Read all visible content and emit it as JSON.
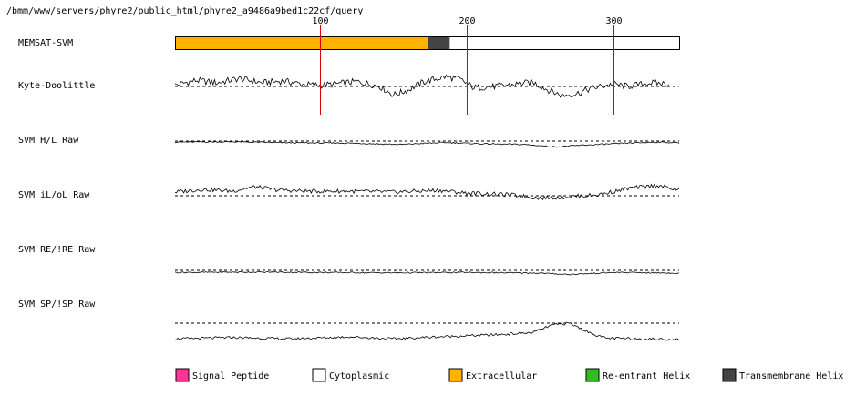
{
  "header": {
    "path": "/bmm/www/servers/phyre2/public_html/phyre2_a9486a9bed1c22cf/query"
  },
  "sequence": {
    "length": 345
  },
  "ticks": [
    {
      "pos": 100,
      "label": "100"
    },
    {
      "pos": 200,
      "label": "200"
    },
    {
      "pos": 300,
      "label": "300"
    }
  ],
  "tracks": [
    {
      "id": "memsat",
      "label": "MEMSAT-SVM"
    },
    {
      "id": "kd",
      "label": "Kyte-Doolittle"
    },
    {
      "id": "svm_hl",
      "label": "SVM H/L Raw"
    },
    {
      "id": "svm_ilol",
      "label": "SVM iL/oL Raw"
    },
    {
      "id": "svm_re",
      "label": "SVM RE/!RE Raw"
    },
    {
      "id": "svm_sp",
      "label": "SVM SP/!SP Raw"
    }
  ],
  "memsat_segments": [
    {
      "start": 1,
      "end": 173,
      "type": "extracellular"
    },
    {
      "start": 174,
      "end": 188,
      "type": "transmembrane"
    },
    {
      "start": 189,
      "end": 345,
      "type": "cytoplasmic"
    }
  ],
  "legend": [
    {
      "type": "signal",
      "label": "Signal Peptide",
      "color": "#ff3399"
    },
    {
      "type": "cytoplasmic",
      "label": "Cytoplasmic",
      "color": "#ffffff"
    },
    {
      "type": "extracellular",
      "label": "Extracellular",
      "color": "#ffb300"
    },
    {
      "type": "reentrant",
      "label": "Re-entrant Helix",
      "color": "#33bb22"
    },
    {
      "type": "transmembrane",
      "label": "Transmembrane Helix",
      "color": "#444444"
    }
  ],
  "chart_data": {
    "type": "line",
    "x_range": [
      1,
      345
    ],
    "series": [
      {
        "id": "kd",
        "threshold": 0,
        "ylim": [
          -4.5,
          4.5
        ],
        "profile": [
          [
            1,
            0.2
          ],
          [
            15,
            1.0
          ],
          [
            30,
            0.6
          ],
          [
            45,
            1.3
          ],
          [
            60,
            0.6
          ],
          [
            75,
            0.9
          ],
          [
            90,
            0.3
          ],
          [
            100,
            0.2
          ],
          [
            110,
            0.4
          ],
          [
            125,
            0.8
          ],
          [
            140,
            0.1
          ],
          [
            150,
            -1.4
          ],
          [
            160,
            -0.6
          ],
          [
            170,
            0.7
          ],
          [
            185,
            1.6
          ],
          [
            195,
            1.2
          ],
          [
            205,
            -0.2
          ],
          [
            220,
            0.0
          ],
          [
            235,
            0.4
          ],
          [
            245,
            0.7
          ],
          [
            255,
            -0.5
          ],
          [
            265,
            -1.5
          ],
          [
            275,
            -1.2
          ],
          [
            285,
            -0.3
          ],
          [
            300,
            0.4
          ],
          [
            310,
            0.0
          ],
          [
            325,
            0.6
          ],
          [
            338,
            0.4
          ]
        ]
      },
      {
        "id": "svm_hl",
        "threshold": 0,
        "ylim": [
          -8,
          8
        ],
        "profile": [
          [
            1,
            -0.3
          ],
          [
            40,
            -0.2
          ],
          [
            80,
            -0.5
          ],
          [
            120,
            -0.6
          ],
          [
            155,
            -1.0
          ],
          [
            185,
            -0.4
          ],
          [
            210,
            -0.8
          ],
          [
            240,
            -1.0
          ],
          [
            260,
            -1.7
          ],
          [
            280,
            -1.2
          ],
          [
            310,
            -0.6
          ],
          [
            330,
            -0.3
          ],
          [
            345,
            -0.5
          ]
        ]
      },
      {
        "id": "svm_ilol",
        "threshold": 0,
        "ylim": [
          -6,
          6
        ],
        "profile": [
          [
            1,
            0.8
          ],
          [
            20,
            1.4
          ],
          [
            40,
            1.0
          ],
          [
            55,
            2.0
          ],
          [
            70,
            1.3
          ],
          [
            90,
            1.0
          ],
          [
            120,
            1.0
          ],
          [
            150,
            0.8
          ],
          [
            180,
            1.2
          ],
          [
            200,
            0.6
          ],
          [
            230,
            0.2
          ],
          [
            250,
            -0.5
          ],
          [
            265,
            -0.3
          ],
          [
            290,
            0.2
          ],
          [
            310,
            1.6
          ],
          [
            330,
            2.3
          ],
          [
            345,
            1.2
          ]
        ]
      },
      {
        "id": "svm_re",
        "threshold": 0,
        "ylim": [
          -8,
          8
        ],
        "profile": [
          [
            1,
            -0.6
          ],
          [
            50,
            -0.5
          ],
          [
            100,
            -0.6
          ],
          [
            150,
            -0.7
          ],
          [
            200,
            -0.6
          ],
          [
            250,
            -0.8
          ],
          [
            270,
            -1.2
          ],
          [
            300,
            -0.6
          ],
          [
            345,
            -0.8
          ]
        ]
      },
      {
        "id": "svm_sp",
        "threshold": 0,
        "ylim": [
          -4,
          4
        ],
        "profile": [
          [
            1,
            -2.3
          ],
          [
            40,
            -2.1
          ],
          [
            80,
            -2.3
          ],
          [
            120,
            -2.0
          ],
          [
            150,
            -2.3
          ],
          [
            180,
            -2.0
          ],
          [
            220,
            -1.7
          ],
          [
            245,
            -1.4
          ],
          [
            258,
            -0.3
          ],
          [
            270,
            0.0
          ],
          [
            285,
            -1.5
          ],
          [
            295,
            -2.2
          ],
          [
            320,
            -2.3
          ],
          [
            345,
            -2.4
          ]
        ]
      }
    ]
  }
}
